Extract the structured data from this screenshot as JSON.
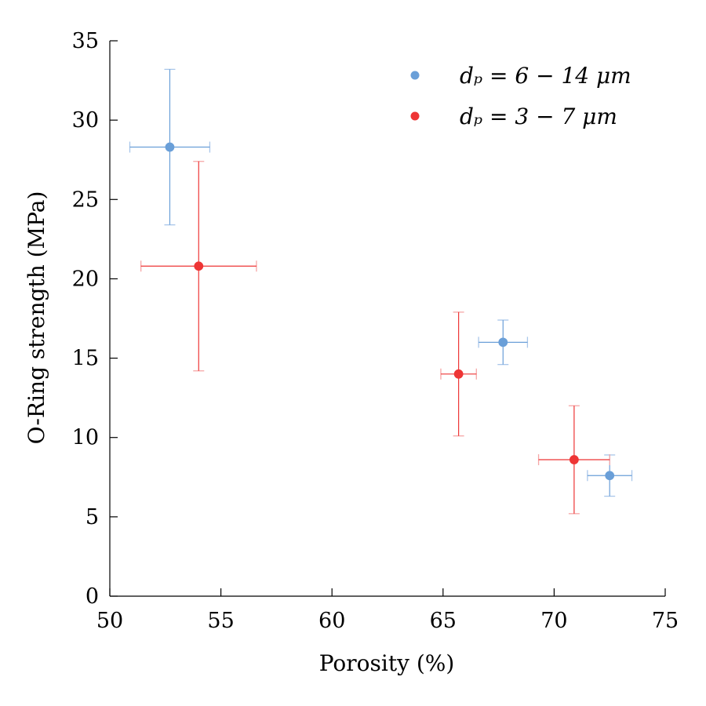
{
  "chart_data": {
    "type": "scatter",
    "xlabel": "Porosity (%)",
    "ylabel": "O-Ring strength (MPa)",
    "xlim": [
      50,
      75
    ],
    "ylim": [
      0,
      35
    ],
    "xticks": [
      "50",
      "55",
      "60",
      "65",
      "70",
      "75"
    ],
    "yticks": [
      "0",
      "5",
      "10",
      "15",
      "20",
      "25",
      "30",
      "35"
    ],
    "grid": false,
    "legend_position": "top-right",
    "series": [
      {
        "name": "d_p = 6 − 14 μm",
        "legend_label": "dₚ = 6 − 14 μm",
        "color": "#6a9fd8",
        "errorbar_color": "#a9c6ea",
        "points": [
          {
            "x": 52.7,
            "y": 28.3,
            "xerr": 1.8,
            "yerr": 4.9
          },
          {
            "x": 67.7,
            "y": 16.0,
            "xerr": 1.1,
            "yerr": 1.4
          },
          {
            "x": 72.5,
            "y": 7.6,
            "xerr": 1.0,
            "yerr": 1.3
          }
        ]
      },
      {
        "name": "d_p = 3 − 7 μm",
        "legend_label": "dₚ = 3 − 7 μm",
        "color": "#ee3535",
        "errorbar_color": "#f6a6a6",
        "points": [
          {
            "x": 54.0,
            "y": 20.8,
            "xerr": 2.6,
            "yerr": 6.6
          },
          {
            "x": 65.7,
            "y": 14.0,
            "xerr": 0.8,
            "yerr": 3.9
          },
          {
            "x": 70.9,
            "y": 8.6,
            "xerr": 1.6,
            "yerr": 3.4
          }
        ]
      }
    ]
  }
}
